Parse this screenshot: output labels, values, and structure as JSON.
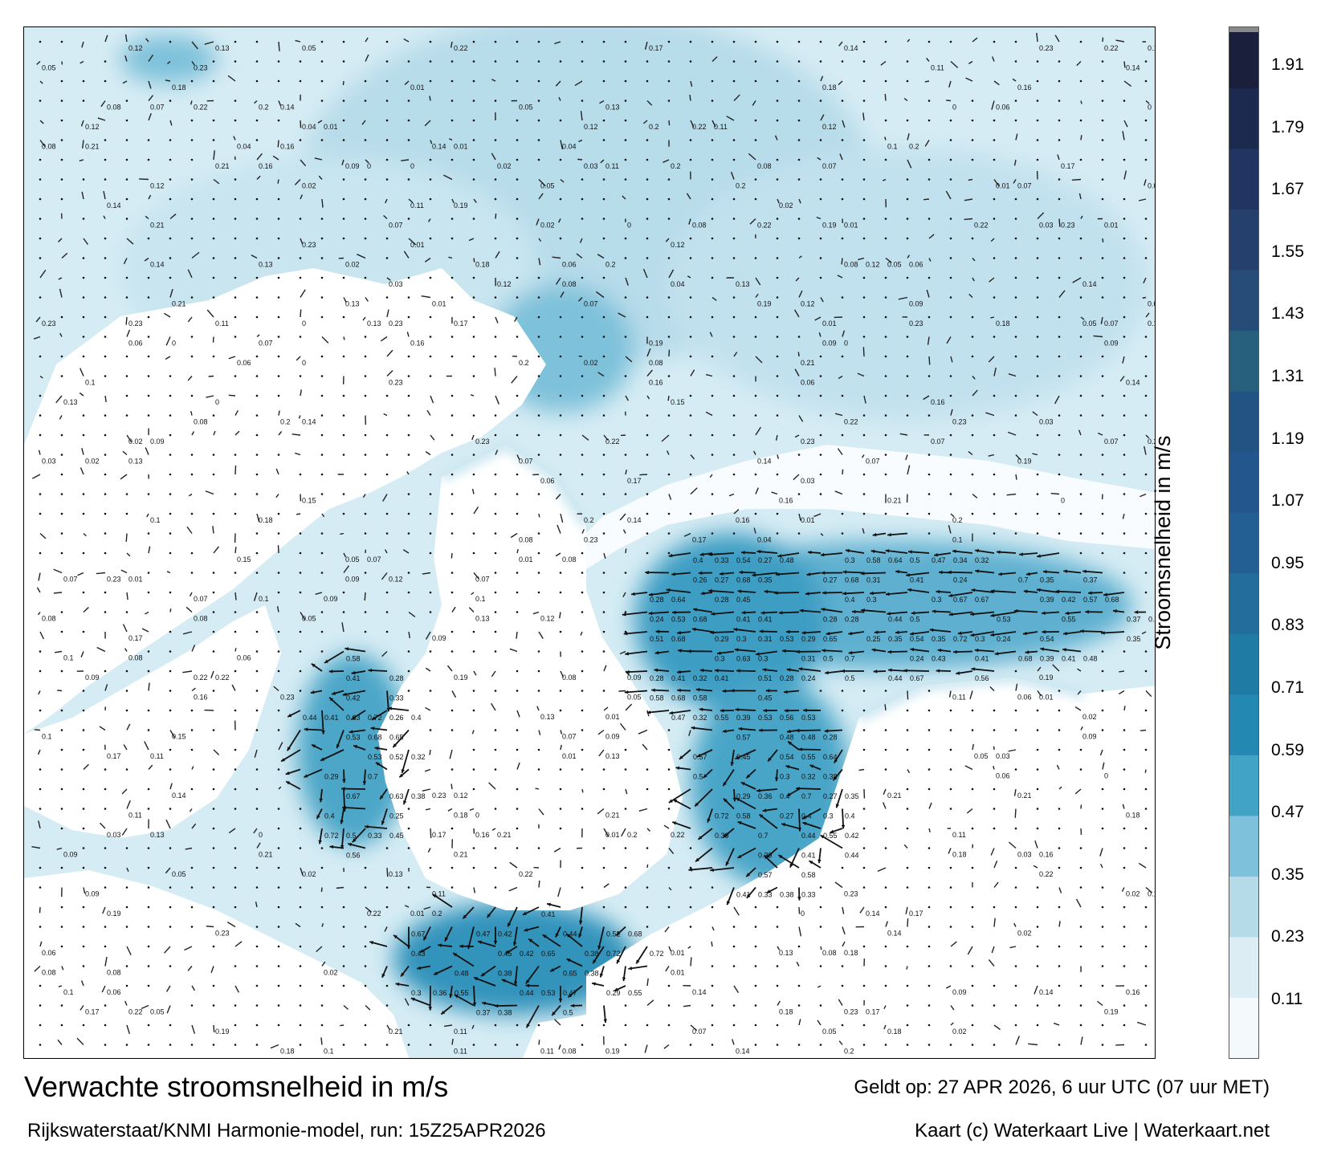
{
  "title": "Verwachte stroomsnelheid in m/s",
  "subtitle": "Rijkswaterstaat/KNMI Harmonie-model, run: 15Z25APR2026",
  "valid_time": "Geldt op: 27 APR 2026, 6 uur UTC (07 uur MET)",
  "credit": "Kaart (c) Waterkaart Live | Waterkaart.net",
  "colorbar": {
    "label": "Stroomsnelheid in m/s",
    "ticks": [
      "1.91",
      "1.79",
      "1.67",
      "1.55",
      "1.43",
      "1.31",
      "1.19",
      "1.07",
      "0.95",
      "0.83",
      "0.71",
      "0.59",
      "0.47",
      "0.35",
      "0.23",
      "0.11"
    ],
    "colors": [
      "#f4f9fc",
      "#dcedf4",
      "#b5dbe9",
      "#7dc1da",
      "#41a3c6",
      "#2489b2",
      "#1f7aa4",
      "#226d9c",
      "#245f94",
      "#22568d",
      "#235383",
      "#27607d",
      "#274c77",
      "#26406d",
      "#223461",
      "#1d2a50",
      "#1a1f3c"
    ]
  },
  "map": {
    "strong_current_labels": [
      "0.63",
      "0.64",
      "0.65",
      "0.68",
      "0.67",
      "0.7",
      "0.72",
      "0.54",
      "0.53",
      "0.55",
      "0.56",
      "0.57",
      "0.58",
      "0.5",
      "0.51",
      "0.52",
      "0.47",
      "0.48",
      "0.45",
      "0.44",
      "0.43",
      "0.42",
      "0.41",
      "0.4",
      "0.39",
      "0.38",
      "0.37",
      "0.36",
      "0.35",
      "0.34",
      "0.33",
      "0.32",
      "0.31",
      "0.3",
      "0.29",
      "0.28",
      "0.27",
      "0.26",
      "0.25",
      "0.24",
      "0.23",
      "0.22",
      "0.21",
      "0.2",
      "0.19",
      "0.18",
      "0.17",
      "0.16",
      "0.15",
      "0.14",
      "0.13",
      "0.12",
      "0.11",
      "0.1",
      "0.09",
      "0.08",
      "0.07",
      "0.06",
      "0.05",
      "0.04",
      "0.03",
      "0.02",
      "0.01",
      "0"
    ]
  }
}
